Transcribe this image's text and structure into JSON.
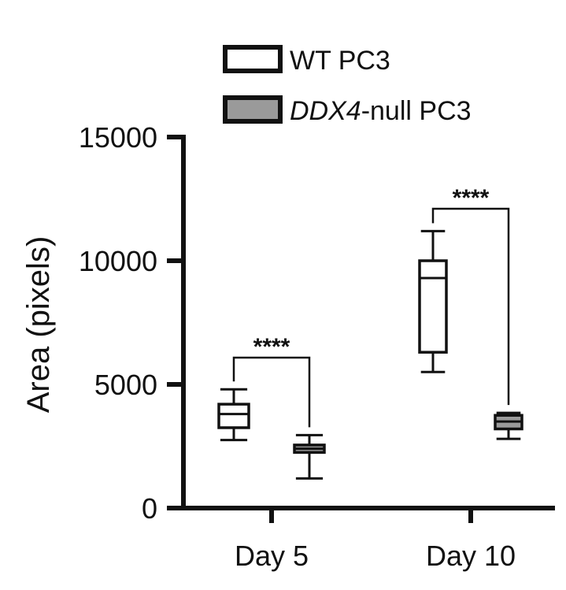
{
  "chart_data": {
    "type": "box",
    "ylabel": "Area  (pixels)",
    "xlabel": "",
    "ylim": [
      0,
      15000
    ],
    "yticks": [
      "0",
      "5000",
      "10000",
      "15000"
    ],
    "categories": [
      "Day 5",
      "Day 10"
    ],
    "legend_position": "top-center",
    "legend": [
      {
        "label_italic": "",
        "label_rest": "WT PC3"
      },
      {
        "label_italic": "DDX4",
        "label_rest": "-null PC3"
      }
    ],
    "series": [
      {
        "name": "WT PC3",
        "fill": "#ffffff",
        "boxes": [
          {
            "category": "Day 5",
            "min": 2750,
            "q1": 3250,
            "median": 3800,
            "q3": 4200,
            "max": 4800
          },
          {
            "category": "Day 10",
            "min": 5500,
            "q1": 6300,
            "median": 9300,
            "q3": 10000,
            "max": 11200
          }
        ]
      },
      {
        "name": "DDX4-null PC3",
        "fill": "#9a9a9a",
        "boxes": [
          {
            "category": "Day 5",
            "min": 1200,
            "q1": 2250,
            "median": 2400,
            "q3": 2550,
            "max": 2950
          },
          {
            "category": "Day 10",
            "min": 2800,
            "q1": 3200,
            "median": 3500,
            "q3": 3750,
            "max": 3850
          }
        ]
      }
    ],
    "significance": [
      {
        "category": "Day 5",
        "label": "****"
      },
      {
        "category": "Day 10",
        "label": "****"
      }
    ]
  }
}
